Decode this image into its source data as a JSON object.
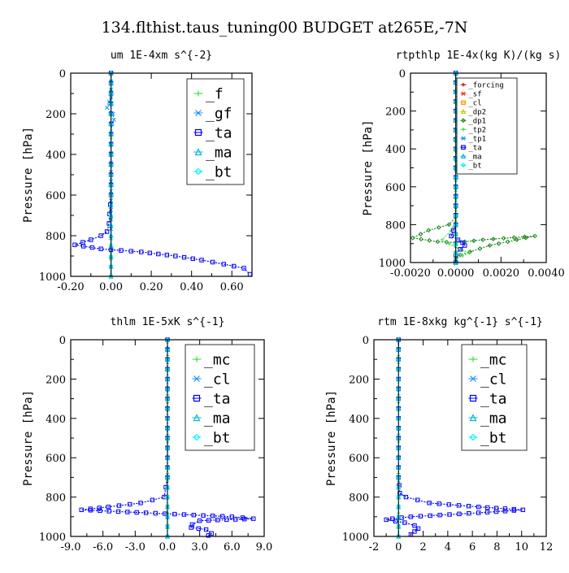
{
  "figure_title": "134.flthist.taus_tuning00  BUDGET at265E,-7N",
  "chart_data": [
    {
      "type": "line",
      "title": "um   1E-4xm s^{-2}",
      "ylabel": "Pressure [hPa]",
      "xlim": [
        -0.2,
        0.7
      ],
      "ylim": [
        1000,
        0
      ],
      "x_ticks": [
        -0.2,
        0.0,
        0.2,
        0.4,
        0.6
      ],
      "x_tick_labels": [
        "-0.20",
        "0.00",
        "0.20",
        "0.40",
        "0.60"
      ],
      "y_ticks": [
        0,
        200,
        400,
        600,
        800,
        1000
      ],
      "y_tick_labels": [
        "0",
        "200",
        "400",
        "600",
        "800",
        "1000"
      ],
      "legend": [
        "_f",
        "_gf",
        "_ta",
        "_ma",
        "_bt"
      ],
      "legend_position": "top-right",
      "series": [
        {
          "name": "_f",
          "color": "#44dd44",
          "x": [
            0,
            0,
            0,
            0,
            0,
            0,
            0,
            0,
            0,
            0,
            0,
            0,
            0
          ],
          "y": [
            0,
            80,
            160,
            240,
            320,
            400,
            480,
            560,
            640,
            720,
            800,
            880,
            1000
          ]
        },
        {
          "name": "_gf",
          "color": "#1e90ff",
          "x": [
            0,
            0,
            -0.01,
            -0.02,
            0.01,
            0.015,
            0.005,
            0,
            0
          ],
          "y": [
            0,
            120,
            140,
            170,
            200,
            230,
            250,
            300,
            1000
          ]
        },
        {
          "name": "_ta",
          "color": "#0000ff",
          "x": [
            0,
            0,
            0,
            -0.01,
            -0.02,
            -0.05,
            -0.1,
            -0.18,
            -0.05,
            0.15,
            0.32,
            0.45,
            0.56,
            0.66,
            0.69
          ],
          "y": [
            0,
            300,
            600,
            740,
            780,
            800,
            820,
            845,
            865,
            880,
            900,
            920,
            940,
            960,
            990
          ]
        },
        {
          "name": "_ma",
          "color": "#00bcd4",
          "x": [
            0,
            0,
            0,
            0,
            0,
            0
          ],
          "y": [
            0,
            200,
            400,
            600,
            800,
            1000
          ]
        },
        {
          "name": "_bt",
          "color": "#00f5ff",
          "x": [
            0,
            0,
            0,
            0,
            0,
            0
          ],
          "y": [
            0,
            200,
            400,
            600,
            800,
            1000
          ]
        }
      ]
    },
    {
      "type": "line",
      "title": "rtpthlp   1E-4x(kg K)/(kg s)",
      "ylabel": "Pressure [hPa]",
      "xlim": [
        -0.002,
        0.004
      ],
      "ylim": [
        1000,
        0
      ],
      "x_ticks": [
        -0.002,
        0.0,
        0.002,
        0.004
      ],
      "x_tick_labels": [
        "-0.0020",
        "0.0000",
        "0.0020",
        "0.0040"
      ],
      "y_ticks": [
        0,
        200,
        400,
        600,
        800,
        1000
      ],
      "y_tick_labels": [
        "0",
        "200",
        "400",
        "600",
        "800",
        "1000"
      ],
      "legend": [
        "_forcing",
        "_sf",
        "_cl",
        "_dp2",
        "_dp1",
        "_tp2",
        "_tp1",
        "_ta",
        "_ma",
        "_bt"
      ],
      "legend_position": "top-right",
      "series": [
        {
          "name": "_forcing",
          "color": "#cc0000",
          "x": [
            0,
            0,
            0,
            0,
            0,
            0,
            0
          ],
          "y": [
            0,
            150,
            300,
            450,
            600,
            800,
            1000
          ]
        },
        {
          "name": "_sf",
          "color": "#ff3300",
          "x": [
            0,
            0,
            0,
            0,
            0,
            0
          ],
          "y": [
            0,
            200,
            400,
            600,
            800,
            1000
          ]
        },
        {
          "name": "_cl",
          "color": "#ff9900",
          "x": [
            0,
            0,
            0,
            0,
            0
          ],
          "y": [
            0,
            250,
            500,
            750,
            1000
          ]
        },
        {
          "name": "_dp2",
          "color": "#cccc00",
          "x": [
            0,
            0,
            0,
            0,
            0
          ],
          "y": [
            0,
            250,
            500,
            750,
            1000
          ]
        },
        {
          "name": "_dp1",
          "color": "#228b22",
          "x": [
            0,
            0,
            -0.0003,
            -0.0012,
            -0.0019,
            -0.0008,
            0,
            0.0012,
            0.0035,
            0.0015,
            0.0002,
            0,
            0
          ],
          "y": [
            0,
            760,
            800,
            830,
            870,
            890,
            895,
            880,
            860,
            910,
            960,
            980,
            1000
          ]
        },
        {
          "name": "_tp2",
          "color": "#44dd44",
          "x": [
            0,
            0,
            -0.0002,
            -0.0006,
            0,
            0.0006,
            0,
            0
          ],
          "y": [
            0,
            780,
            830,
            880,
            920,
            950,
            980,
            1000
          ]
        },
        {
          "name": "_tp1",
          "color": "#1e90ff",
          "x": [
            0,
            0,
            0,
            0,
            0
          ],
          "y": [
            0,
            250,
            500,
            750,
            1000
          ]
        },
        {
          "name": "_ta",
          "color": "#0000ff",
          "x": [
            0,
            0,
            -0.0001,
            -0.0002,
            0.0001,
            0.0003,
            0.0004,
            0.0002,
            0,
            0
          ],
          "y": [
            0,
            800,
            830,
            860,
            880,
            895,
            910,
            930,
            960,
            1000
          ]
        },
        {
          "name": "_ma",
          "color": "#00bcd4",
          "x": [
            0,
            0,
            0,
            0,
            0
          ],
          "y": [
            0,
            250,
            500,
            750,
            1000
          ]
        },
        {
          "name": "_bt",
          "color": "#00f5ff",
          "x": [
            0,
            0,
            0,
            0,
            0
          ],
          "y": [
            0,
            250,
            500,
            750,
            1000
          ]
        }
      ]
    },
    {
      "type": "line",
      "title": "thlm   1E-5xK s^{-1}",
      "ylabel": "Pressure [hPa]",
      "xlim": [
        -9,
        9
      ],
      "ylim": [
        1000,
        0
      ],
      "x_ticks": [
        -9,
        -6,
        -3,
        0,
        3,
        6,
        9
      ],
      "x_tick_labels": [
        "-9.0",
        "-6.0",
        "-3.0",
        "0.0",
        "3.0",
        "6.0",
        "9.0"
      ],
      "y_ticks": [
        0,
        200,
        400,
        600,
        800,
        1000
      ],
      "y_tick_labels": [
        "0",
        "200",
        "400",
        "600",
        "800",
        "1000"
      ],
      "legend": [
        "_mc",
        "_cl",
        "_ta",
        "_ma",
        "_bt"
      ],
      "legend_position": "top-right",
      "series": [
        {
          "name": "_mc",
          "color": "#44dd44",
          "x": [
            0,
            0,
            0,
            0,
            0,
            0,
            0,
            0,
            0,
            0,
            0,
            0,
            0
          ],
          "y": [
            0,
            80,
            160,
            240,
            320,
            400,
            480,
            560,
            640,
            720,
            800,
            880,
            1000
          ]
        },
        {
          "name": "_cl",
          "color": "#1e90ff",
          "x": [
            0,
            0,
            0,
            0,
            0
          ],
          "y": [
            0,
            250,
            500,
            750,
            1000
          ]
        },
        {
          "name": "_ta",
          "color": "#0000ff",
          "x": [
            0,
            0,
            -0.3,
            -2.5,
            -5.5,
            -8.0,
            -2.0,
            6.0,
            8.0,
            3.0,
            2.3,
            2.2,
            3.6,
            4.1,
            3.8
          ],
          "y": [
            0,
            700,
            800,
            830,
            850,
            865,
            880,
            900,
            910,
            920,
            940,
            955,
            965,
            985,
            995
          ]
        },
        {
          "name": "_ma",
          "color": "#00bcd4",
          "x": [
            0,
            0,
            0,
            0,
            0
          ],
          "y": [
            0,
            250,
            500,
            750,
            1000
          ]
        },
        {
          "name": "_bt",
          "color": "#00f5ff",
          "x": [
            0,
            0,
            0,
            0,
            0
          ],
          "y": [
            0,
            250,
            500,
            750,
            1000
          ]
        }
      ]
    },
    {
      "type": "line",
      "title": "rtm   1E-8xkg kg^{-1} s^{-1}",
      "ylabel": "Pressure [hPa]",
      "xlim": [
        -2,
        12
      ],
      "ylim": [
        1000,
        0
      ],
      "x_ticks": [
        -2,
        0,
        2,
        4,
        6,
        8,
        10,
        12
      ],
      "x_tick_labels": [
        "-2",
        "0",
        "2",
        "4",
        "6",
        "8",
        "10",
        "12"
      ],
      "y_ticks": [
        0,
        200,
        400,
        600,
        800,
        1000
      ],
      "y_tick_labels": [
        "0",
        "200",
        "400",
        "600",
        "800",
        "1000"
      ],
      "legend": [
        "_mc",
        "_cl",
        "_ta",
        "_ma",
        "_bt"
      ],
      "legend_position": "top-right",
      "series": [
        {
          "name": "_mc",
          "color": "#44dd44",
          "x": [
            0,
            0,
            0,
            0,
            0,
            0,
            0,
            0,
            0,
            0,
            0,
            0,
            0
          ],
          "y": [
            0,
            80,
            160,
            240,
            320,
            400,
            480,
            560,
            640,
            720,
            800,
            880,
            1000
          ]
        },
        {
          "name": "_cl",
          "color": "#1e90ff",
          "x": [
            0,
            0,
            0,
            0,
            0
          ],
          "y": [
            0,
            250,
            500,
            750,
            1000
          ]
        },
        {
          "name": "_ta",
          "color": "#0000ff",
          "x": [
            0,
            0,
            0.1,
            0.6,
            2.5,
            6.5,
            10.1,
            6.5,
            1.0,
            -0.5,
            -1.0,
            0.5,
            1.3,
            1.6,
            1.3,
            1.0
          ],
          "y": [
            0,
            700,
            780,
            800,
            830,
            850,
            865,
            880,
            900,
            910,
            915,
            930,
            945,
            960,
            975,
            990
          ]
        },
        {
          "name": "_ma",
          "color": "#00bcd4",
          "x": [
            0,
            0,
            0,
            0,
            0
          ],
          "y": [
            0,
            250,
            500,
            750,
            1000
          ]
        },
        {
          "name": "_bt",
          "color": "#00f5ff",
          "x": [
            0,
            0,
            0,
            0,
            0
          ],
          "y": [
            0,
            250,
            500,
            750,
            1000
          ]
        }
      ]
    }
  ]
}
